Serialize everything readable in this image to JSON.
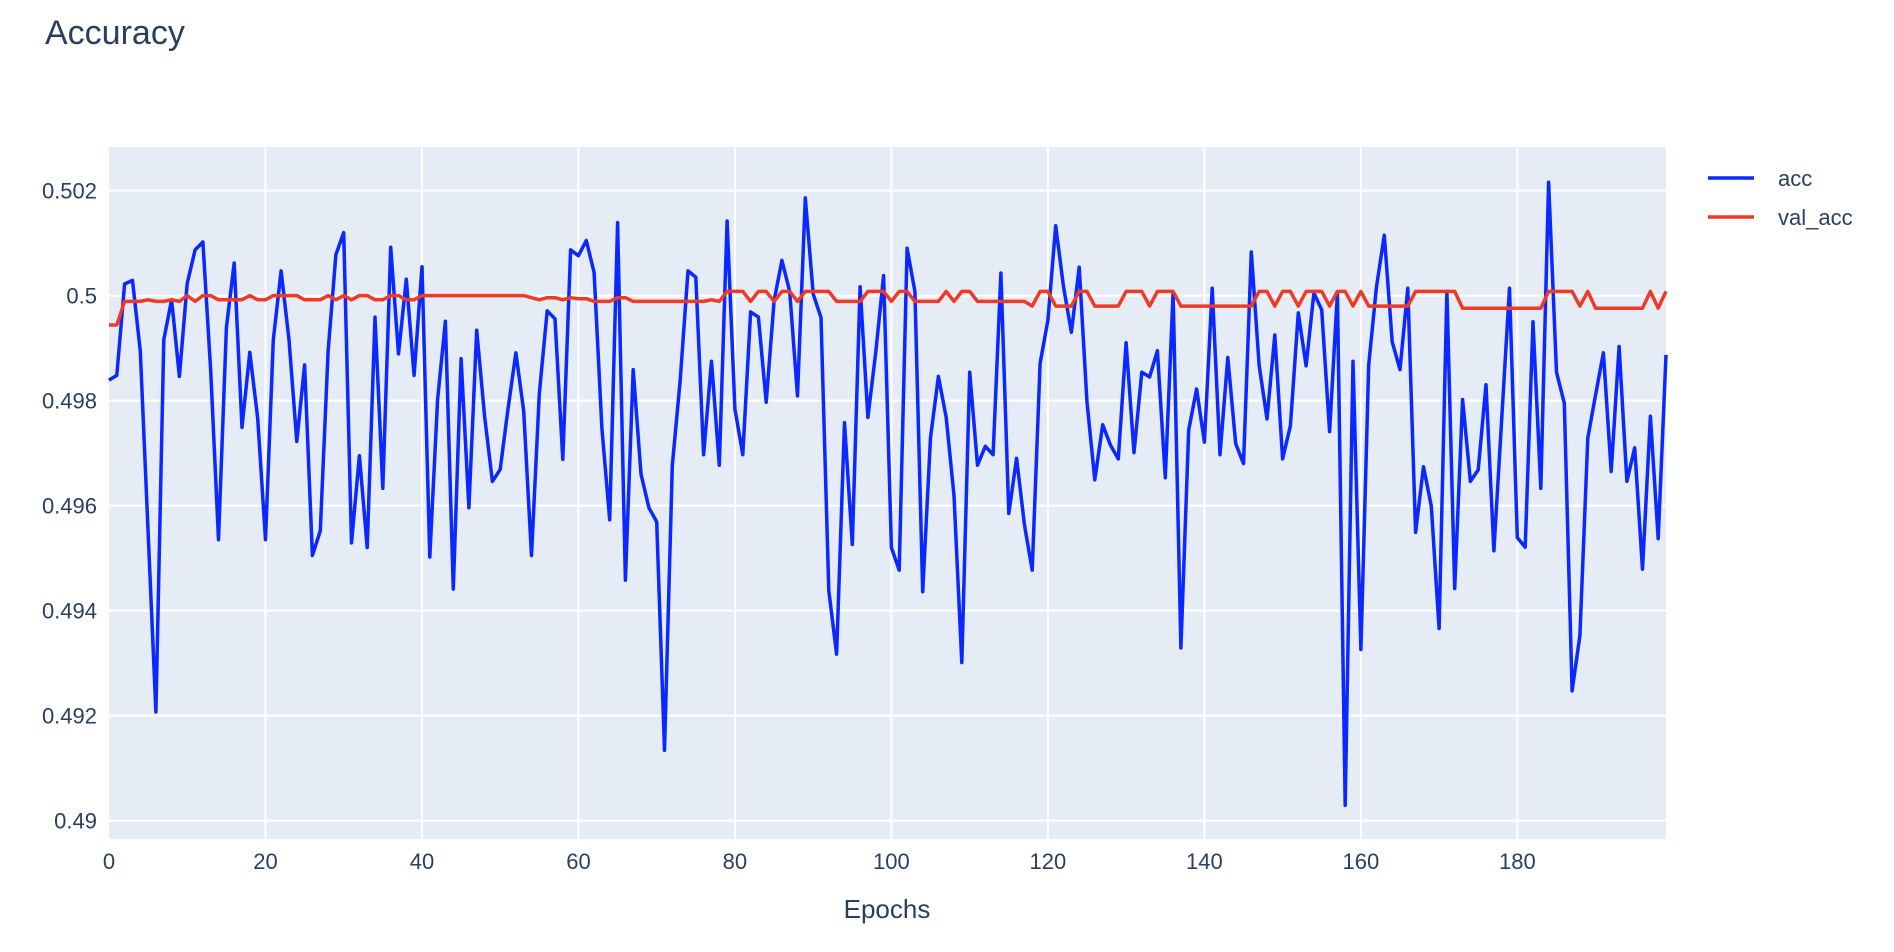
{
  "chart_data": {
    "type": "line",
    "title": "Accuracy",
    "xlabel": "Epochs",
    "ylabel": "",
    "xlim": [
      0,
      199
    ],
    "ylim": [
      0.48965,
      0.50283
    ],
    "grid": true,
    "legend_position": "top-right (outside plot)",
    "x_ticks": [
      0,
      20,
      40,
      60,
      80,
      100,
      120,
      140,
      160,
      180
    ],
    "x_tick_labels": [
      "0",
      "20",
      "40",
      "60",
      "80",
      "100",
      "120",
      "140",
      "160",
      "180"
    ],
    "y_ticks": [
      0.49,
      0.492,
      0.494,
      0.496,
      0.498,
      0.5,
      0.502
    ],
    "y_tick_labels": [
      "0.49",
      "0.492",
      "0.494",
      "0.496",
      "0.498",
      "0.5",
      "0.502"
    ],
    "series": [
      {
        "name": "acc",
        "color": "#0a28ff",
        "values": [
          0.49839,
          0.49848,
          0.50022,
          0.50029,
          0.49894,
          0.4955,
          0.49207,
          0.49916,
          0.49992,
          0.49846,
          0.50023,
          0.50087,
          0.50102,
          0.49857,
          0.49535,
          0.49939,
          0.50062,
          0.49749,
          0.49892,
          0.49766,
          0.49535,
          0.49916,
          0.50047,
          0.49916,
          0.49722,
          0.49868,
          0.49505,
          0.49552,
          0.49894,
          0.50078,
          0.5012,
          0.49529,
          0.49695,
          0.4952,
          0.49959,
          0.49633,
          0.50092,
          0.49889,
          0.50031,
          0.49848,
          0.50055,
          0.49502,
          0.49802,
          0.49951,
          0.49441,
          0.4988,
          0.49596,
          0.49934,
          0.4977,
          0.49646,
          0.49669,
          0.49784,
          0.49891,
          0.4978,
          0.49505,
          0.49813,
          0.49971,
          0.49956,
          0.49688,
          0.50087,
          0.50076,
          0.50105,
          0.50044,
          0.49747,
          0.49573,
          0.50139,
          0.49458,
          0.49859,
          0.4966,
          0.49596,
          0.49569,
          0.49134,
          0.49676,
          0.49839,
          0.50047,
          0.50035,
          0.49697,
          0.49875,
          0.49677,
          0.50142,
          0.49784,
          0.49697,
          0.49969,
          0.49959,
          0.49797,
          0.4999,
          0.50067,
          0.50008,
          0.49809,
          0.50186,
          0.50003,
          0.49958,
          0.49438,
          0.49317,
          0.49758,
          0.49526,
          0.50017,
          0.49768,
          0.49893,
          0.50038,
          0.4952,
          0.49477,
          0.5009,
          0.50008,
          0.49436,
          0.49729,
          0.49846,
          0.49768,
          0.49619,
          0.49301,
          0.49854,
          0.49677,
          0.49713,
          0.49697,
          0.50043,
          0.49585,
          0.4969,
          0.49564,
          0.49477,
          0.49871,
          0.49953,
          0.50133,
          0.50017,
          0.4993,
          0.50054,
          0.49797,
          0.49649,
          0.49754,
          0.49715,
          0.49689,
          0.4991,
          0.49701,
          0.49854,
          0.49845,
          0.49895,
          0.49653,
          0.50005,
          0.49329,
          0.49744,
          0.49822,
          0.49721,
          0.50014,
          0.49697,
          0.49882,
          0.49718,
          0.4968,
          0.50083,
          0.49868,
          0.49765,
          0.49925,
          0.49689,
          0.49752,
          0.49967,
          0.49866,
          0.50005,
          0.49973,
          0.49741,
          0.50005,
          0.49029,
          0.49875,
          0.49326,
          0.49868,
          0.50017,
          0.50115,
          0.49912,
          0.49859,
          0.50014,
          0.49549,
          0.49674,
          0.49599,
          0.49366,
          0.50008,
          0.49442,
          0.49802,
          0.49646,
          0.49668,
          0.4983,
          0.49514,
          0.49765,
          0.50014,
          0.49539,
          0.49521,
          0.4995,
          0.49633,
          0.50216,
          0.49854,
          0.49795,
          0.49247,
          0.49352,
          0.49729,
          0.49811,
          0.49891,
          0.49665,
          0.49903,
          0.49646,
          0.4971,
          0.49479,
          0.4977,
          0.49537,
          0.49887
        ]
      },
      {
        "name": "val_acc",
        "color": "#ef3a26",
        "values": [
          0.49944,
          0.49944,
          0.49989,
          0.49989,
          0.49989,
          0.49992,
          0.49989,
          0.49989,
          0.49992,
          0.49989,
          0.5,
          0.49989,
          0.5,
          0.5,
          0.49992,
          0.49992,
          0.49992,
          0.49992,
          0.5,
          0.49992,
          0.49992,
          0.5,
          0.5,
          0.5,
          0.5,
          0.49992,
          0.49992,
          0.49992,
          0.5,
          0.49992,
          0.5,
          0.49992,
          0.5,
          0.5,
          0.49992,
          0.49992,
          0.5,
          0.5,
          0.49992,
          0.49992,
          0.5,
          0.5,
          0.5,
          0.5,
          0.5,
          0.5,
          0.5,
          0.5,
          0.5,
          0.5,
          0.5,
          0.5,
          0.5,
          0.5,
          0.49996,
          0.49992,
          0.49996,
          0.49996,
          0.49992,
          0.49996,
          0.49994,
          0.49994,
          0.49989,
          0.49989,
          0.49989,
          0.49996,
          0.49996,
          0.49989,
          0.49989,
          0.49989,
          0.49989,
          0.49989,
          0.49989,
          0.49989,
          0.49989,
          0.49989,
          0.49989,
          0.49992,
          0.49989,
          0.50008,
          0.50008,
          0.50008,
          0.49989,
          0.50008,
          0.50008,
          0.49989,
          0.50008,
          0.50008,
          0.49989,
          0.50008,
          0.50008,
          0.50008,
          0.50008,
          0.49989,
          0.49989,
          0.49989,
          0.49989,
          0.50008,
          0.50008,
          0.50008,
          0.49989,
          0.50008,
          0.50008,
          0.49989,
          0.49989,
          0.49989,
          0.49989,
          0.50008,
          0.49989,
          0.50008,
          0.50008,
          0.49989,
          0.49989,
          0.49989,
          0.49989,
          0.49989,
          0.49989,
          0.49989,
          0.4998,
          0.50008,
          0.50008,
          0.4998,
          0.4998,
          0.4998,
          0.50008,
          0.50008,
          0.4998,
          0.4998,
          0.4998,
          0.4998,
          0.50008,
          0.50008,
          0.50008,
          0.4998,
          0.50008,
          0.50008,
          0.50008,
          0.4998,
          0.4998,
          0.4998,
          0.4998,
          0.4998,
          0.4998,
          0.4998,
          0.4998,
          0.4998,
          0.4998,
          0.50008,
          0.50008,
          0.4998,
          0.50008,
          0.50008,
          0.4998,
          0.50008,
          0.50008,
          0.50008,
          0.4998,
          0.50008,
          0.50008,
          0.4998,
          0.50008,
          0.4998,
          0.4998,
          0.4998,
          0.4998,
          0.4998,
          0.4998,
          0.50008,
          0.50008,
          0.50008,
          0.50008,
          0.50008,
          0.50008,
          0.49976,
          0.49976,
          0.49976,
          0.49976,
          0.49976,
          0.49976,
          0.49976,
          0.49976,
          0.49976,
          0.49976,
          0.49976,
          0.50008,
          0.50008,
          0.50008,
          0.50008,
          0.4998,
          0.50008,
          0.49976,
          0.49976,
          0.49976,
          0.49976,
          0.49976,
          0.49976,
          0.49976,
          0.50008,
          0.49976,
          0.50008
        ]
      }
    ]
  }
}
